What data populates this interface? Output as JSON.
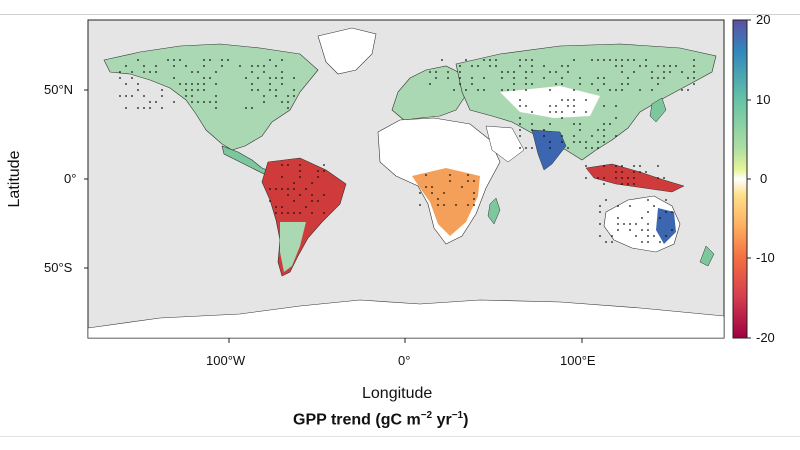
{
  "map": {
    "x_label": "Longitude",
    "y_label": "Latitude",
    "x_ticks": [
      "100°W",
      "0°",
      "100°E"
    ],
    "y_ticks": [
      "50°N",
      "0°",
      "50°S"
    ]
  },
  "title": {
    "prefix": "GPP trend (gC m",
    "exp1": "−2",
    "mid": " yr",
    "exp2": "−1",
    "suffix": ")"
  },
  "colorbar": {
    "ticks": [
      "20",
      "10",
      "0",
      "-10",
      "-20"
    ],
    "min": -20,
    "max": 20,
    "colors": [
      "#9e0142",
      "#d53e4f",
      "#f46d43",
      "#fdae61",
      "#fee08b",
      "#ffffbf",
      "#e6f598",
      "#abdda4",
      "#66c2a5",
      "#3288bd",
      "#5e4fa2"
    ]
  },
  "colors": {
    "ocean": "#e5e5e5",
    "land_base": "#ffffff",
    "green": "#7cc79b",
    "teal": "#52a8a0",
    "red": "#cf3b3b",
    "orange": "#f5a05a",
    "blue": "#3c67b0"
  }
}
